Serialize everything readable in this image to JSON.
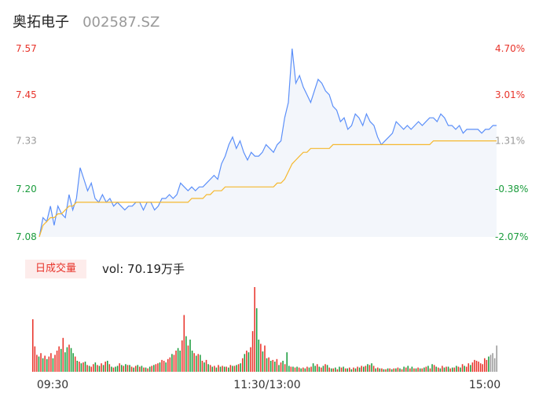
{
  "header": {
    "name": "奥拓电子",
    "code": "002587.SZ"
  },
  "colors": {
    "price_line": "#5b8ff9",
    "avg_line": "#f5b82e",
    "area_fill": "#f3f6fb",
    "up": "#e8332a",
    "down": "#1a9c3c",
    "neutral": "#999999"
  },
  "volume": {
    "badge": "日成交量",
    "text": "vol: 70.19万手"
  },
  "chart_data": [
    {
      "type": "line",
      "title": "",
      "ylim": [
        7.08,
        7.57
      ],
      "y_ticks_left": [
        {
          "label": "7.57",
          "value": 7.57,
          "tone": "up"
        },
        {
          "label": "7.45",
          "value": 7.45,
          "tone": "up"
        },
        {
          "label": "7.33",
          "value": 7.33,
          "tone": "neutral"
        },
        {
          "label": "7.20",
          "value": 7.205,
          "tone": "down"
        },
        {
          "label": "7.08",
          "value": 7.08,
          "tone": "down"
        }
      ],
      "y_ticks_right": [
        {
          "label": "4.70%",
          "value": 7.57,
          "tone": "up"
        },
        {
          "label": "3.01%",
          "value": 7.45,
          "tone": "up"
        },
        {
          "label": "1.31%",
          "value": 7.33,
          "tone": "neutral"
        },
        {
          "label": "-0.38%",
          "value": 7.205,
          "tone": "down"
        },
        {
          "label": "-2.07%",
          "value": 7.08,
          "tone": "down"
        }
      ],
      "x_ticks": [
        "09:30",
        "11:30/13:00",
        "15:00"
      ],
      "series": [
        {
          "key": "price",
          "values": [
            7.08,
            7.13,
            7.12,
            7.16,
            7.11,
            7.16,
            7.14,
            7.13,
            7.19,
            7.15,
            7.18,
            7.26,
            7.23,
            7.2,
            7.22,
            7.18,
            7.17,
            7.19,
            7.17,
            7.18,
            7.16,
            7.17,
            7.16,
            7.15,
            7.16,
            7.16,
            7.17,
            7.17,
            7.15,
            7.17,
            7.17,
            7.15,
            7.16,
            7.18,
            7.18,
            7.19,
            7.18,
            7.19,
            7.22,
            7.21,
            7.2,
            7.21,
            7.2,
            7.21,
            7.21,
            7.22,
            7.23,
            7.24,
            7.23,
            7.27,
            7.29,
            7.32,
            7.34,
            7.31,
            7.33,
            7.3,
            7.28,
            7.3,
            7.29,
            7.29,
            7.3,
            7.32,
            7.31,
            7.3,
            7.32,
            7.33,
            7.39,
            7.43,
            7.57,
            7.48,
            7.5,
            7.47,
            7.45,
            7.43,
            7.46,
            7.49,
            7.48,
            7.46,
            7.45,
            7.42,
            7.41,
            7.38,
            7.39,
            7.36,
            7.37,
            7.4,
            7.39,
            7.37,
            7.4,
            7.38,
            7.37,
            7.34,
            7.32,
            7.33,
            7.34,
            7.35,
            7.38,
            7.37,
            7.36,
            7.37,
            7.36,
            7.37,
            7.38,
            7.37,
            7.38,
            7.39,
            7.39,
            7.38,
            7.4,
            7.39,
            7.37,
            7.37,
            7.36,
            7.37,
            7.35,
            7.36,
            7.36,
            7.36,
            7.36,
            7.35,
            7.36,
            7.36,
            7.37,
            7.37
          ]
        },
        {
          "key": "average",
          "values": [
            7.08,
            7.11,
            7.12,
            7.13,
            7.13,
            7.14,
            7.14,
            7.15,
            7.16,
            7.16,
            7.17,
            7.17,
            7.17,
            7.17,
            7.17,
            7.17,
            7.17,
            7.17,
            7.17,
            7.17,
            7.17,
            7.17,
            7.17,
            7.17,
            7.17,
            7.17,
            7.17,
            7.17,
            7.17,
            7.17,
            7.17,
            7.17,
            7.17,
            7.17,
            7.17,
            7.17,
            7.17,
            7.17,
            7.17,
            7.17,
            7.17,
            7.18,
            7.18,
            7.18,
            7.18,
            7.19,
            7.19,
            7.2,
            7.2,
            7.2,
            7.21,
            7.21,
            7.21,
            7.21,
            7.21,
            7.21,
            7.21,
            7.21,
            7.21,
            7.21,
            7.21,
            7.21,
            7.21,
            7.21,
            7.22,
            7.22,
            7.23,
            7.25,
            7.27,
            7.28,
            7.29,
            7.3,
            7.3,
            7.31,
            7.31,
            7.31,
            7.31,
            7.31,
            7.31,
            7.32,
            7.32,
            7.32,
            7.32,
            7.32,
            7.32,
            7.32,
            7.32,
            7.32,
            7.32,
            7.32,
            7.32,
            7.32,
            7.32,
            7.32,
            7.32,
            7.32,
            7.32,
            7.32,
            7.32,
            7.32,
            7.32,
            7.32,
            7.32,
            7.32,
            7.32,
            7.32,
            7.33,
            7.33,
            7.33,
            7.33,
            7.33,
            7.33,
            7.33,
            7.33,
            7.33,
            7.33,
            7.33,
            7.33,
            7.33,
            7.33,
            7.33,
            7.33,
            7.33,
            7.33
          ]
        }
      ]
    },
    {
      "type": "bar",
      "title": "",
      "ylim": [
        0,
        100
      ],
      "values": [
        62,
        30,
        20,
        18,
        22,
        16,
        19,
        15,
        18,
        22,
        16,
        20,
        25,
        30,
        27,
        40,
        23,
        29,
        32,
        28,
        22,
        18,
        13,
        12,
        10,
        11,
        12,
        8,
        7,
        6,
        9,
        11,
        8,
        7,
        10,
        8,
        12,
        13,
        9,
        6,
        5,
        6,
        7,
        10,
        8,
        7,
        9,
        8,
        8,
        6,
        5,
        7,
        8,
        6,
        7,
        5,
        5,
        4,
        6,
        7,
        8,
        9,
        10,
        11,
        14,
        13,
        11,
        15,
        17,
        21,
        20,
        25,
        28,
        25,
        37,
        67,
        42,
        31,
        38,
        25,
        22,
        19,
        21,
        20,
        13,
        11,
        14,
        9,
        8,
        6,
        7,
        5,
        8,
        6,
        7,
        6,
        6,
        5,
        8,
        7,
        7,
        8,
        9,
        10,
        16,
        21,
        25,
        23,
        29,
        48,
        100,
        75,
        38,
        33,
        24,
        31,
        16,
        17,
        13,
        14,
        12,
        15,
        8,
        11,
        13,
        9,
        23,
        7,
        6,
        6,
        5,
        6,
        5,
        4,
        5,
        4,
        6,
        5,
        6,
        10,
        7,
        9,
        6,
        5,
        7,
        9,
        8,
        5,
        4,
        4,
        5,
        3,
        6,
        5,
        6,
        4,
        4,
        5,
        3,
        5,
        4,
        6,
        5,
        7,
        6,
        7,
        9,
        8,
        10,
        7,
        4,
        5,
        4,
        4,
        3,
        3,
        4,
        4,
        3,
        4,
        4,
        5,
        4,
        3,
        6,
        5,
        7,
        4,
        6,
        4,
        4,
        5,
        4,
        4,
        5,
        6,
        7,
        4,
        9,
        8,
        6,
        5,
        4,
        7,
        5,
        6,
        6,
        4,
        5,
        5,
        7,
        6,
        5,
        9,
        7,
        6,
        10,
        8,
        11,
        14,
        13,
        12,
        10,
        9,
        16,
        14,
        18,
        20,
        22,
        16,
        31
      ],
      "colors": [
        "up",
        "up",
        "up",
        "down",
        "up",
        "down",
        "up",
        "down",
        "up",
        "up",
        "down",
        "up",
        "up",
        "up",
        "down",
        "up",
        "down",
        "down",
        "up",
        "down",
        "down",
        "up",
        "down",
        "up",
        "down",
        "up",
        "down",
        "up",
        "down",
        "up",
        "up",
        "down",
        "up",
        "down",
        "up",
        "down",
        "up",
        "down",
        "up",
        "down",
        "up",
        "down",
        "down",
        "up",
        "down",
        "up",
        "down",
        "up",
        "down",
        "up",
        "down",
        "up",
        "down",
        "up",
        "down",
        "up",
        "down",
        "up",
        "down",
        "up",
        "down",
        "up",
        "up",
        "down",
        "up",
        "up",
        "down",
        "up",
        "up",
        "down",
        "up",
        "up",
        "down",
        "down",
        "up",
        "up",
        "down",
        "up",
        "down",
        "down",
        "up",
        "down",
        "up",
        "down",
        "up",
        "down",
        "up",
        "down",
        "up",
        "down",
        "up",
        "down",
        "up",
        "down",
        "up",
        "down",
        "up",
        "down",
        "up",
        "down",
        "up",
        "down",
        "up",
        "down",
        "up",
        "down",
        "up",
        "down",
        "up",
        "up",
        "up",
        "down",
        "down",
        "up",
        "down",
        "up",
        "down",
        "up",
        "down",
        "up",
        "down",
        "up",
        "down",
        "up",
        "down",
        "up",
        "down",
        "down",
        "up",
        "down",
        "up",
        "down",
        "up",
        "down",
        "up",
        "down",
        "up",
        "down",
        "up",
        "down",
        "down",
        "up",
        "down",
        "up",
        "down",
        "up",
        "down",
        "up",
        "down",
        "up",
        "down",
        "up",
        "down",
        "up",
        "down",
        "up",
        "down",
        "up",
        "down",
        "up",
        "down",
        "up",
        "down",
        "up",
        "down",
        "up",
        "down",
        "up",
        "down",
        "up",
        "down",
        "up",
        "down",
        "up",
        "down",
        "up",
        "down",
        "up",
        "down",
        "up",
        "down",
        "up",
        "down",
        "up",
        "down",
        "up",
        "down",
        "up",
        "down",
        "up",
        "down",
        "up",
        "down",
        "up",
        "down",
        "up",
        "down",
        "up",
        "down",
        "up",
        "down",
        "up",
        "down",
        "up",
        "down",
        "up",
        "down",
        "up",
        "down",
        "up",
        "down",
        "up",
        "down",
        "up",
        "down",
        "up",
        "up",
        "down",
        "up",
        "up",
        "up",
        "up",
        "up",
        "up",
        "up",
        "up",
        "down"
      ]
    }
  ]
}
